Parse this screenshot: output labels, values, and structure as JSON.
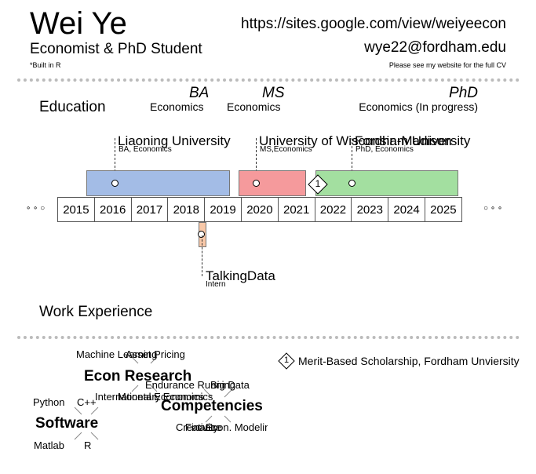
{
  "header": {
    "name": "Wei Ye",
    "subtitle": "Economist & PhD Student",
    "built_note": "*Built in R",
    "website": "https://sites.google.com/view/weiyeecon",
    "email": "wye22@fordham.edu",
    "cv_note": "Please see my website for the full CV"
  },
  "education": {
    "section_title": "Education",
    "degrees": [
      {
        "degree": "BA",
        "field": "Economics"
      },
      {
        "degree": "MS",
        "field": "Economics"
      },
      {
        "degree": "PhD",
        "field": "Economics (In progress)"
      }
    ],
    "institutions": [
      {
        "name": "Liaoning University",
        "detail": "BA, Economics"
      },
      {
        "name": "University of Wisconsin-Madison",
        "detail": "MS,Economics"
      },
      {
        "name": "Fordham University",
        "detail": "PhD, Economics"
      }
    ],
    "award_marker": "1"
  },
  "timeline": {
    "years": [
      "2015",
      "2016",
      "2017",
      "2018",
      "2019",
      "2020",
      "2021",
      "2022",
      "2023",
      "2024",
      "2025"
    ],
    "bar_colors": {
      "ba": "#a3bce6",
      "ms": "#f59a9c",
      "phd": "#a3dfa0",
      "work": "#f8c8a8"
    }
  },
  "work": {
    "section_title": "Work Experience",
    "company": "TalkingData",
    "role": "Intern"
  },
  "awards": {
    "marker": "1",
    "text": "Merit-Based Scholarship, Fordham Unviersity"
  },
  "skills": {
    "econ_research": {
      "title": "Econ Research",
      "words": [
        "Machine Learning",
        "Asset Pricing",
        "International Economics",
        "Monetary Economics"
      ]
    },
    "software": {
      "title": "Software",
      "words": [
        "Python",
        "C++",
        "Matlab",
        "R"
      ]
    },
    "competencies": {
      "title": "Competencies",
      "words": [
        "Endurance Running",
        "Big Data",
        "Creativity",
        "Finance",
        "Econ. Modeling"
      ]
    }
  }
}
